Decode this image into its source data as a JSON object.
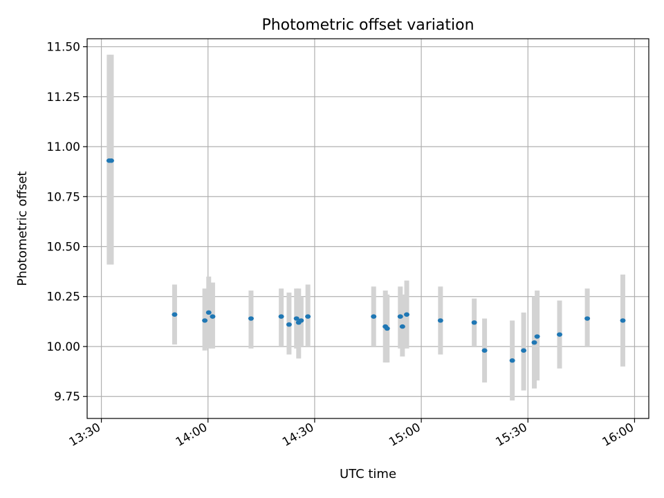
{
  "chart_data": {
    "type": "scatter",
    "title": "Photometric offset variation",
    "xlabel": "UTC time",
    "ylabel": "Photometric offset",
    "xlim": [
      "13:26",
      "16:04"
    ],
    "ylim": [
      9.64,
      11.54
    ],
    "x_ticks": [
      "13:30",
      "14:00",
      "14:30",
      "15:00",
      "15:30",
      "16:00"
    ],
    "y_ticks": [
      "9.75",
      "10.00",
      "10.25",
      "10.50",
      "10.75",
      "11.00",
      "11.25",
      "11.50"
    ],
    "grid": true,
    "colors": {
      "point": "#1f77b4",
      "error_bar": "#d3d3d3",
      "grid": "#b0b0b0"
    },
    "series": [
      {
        "points": [
          {
            "x": "13:32:12",
            "y": 10.93,
            "lo": 10.41,
            "hi": 11.46
          },
          {
            "x": "13:32:48",
            "y": 10.93,
            "lo": 10.41,
            "hi": 11.46
          },
          {
            "x": "13:50:36",
            "y": 10.16,
            "lo": 10.01,
            "hi": 10.31
          },
          {
            "x": "13:59:06",
            "y": 10.13,
            "lo": 9.98,
            "hi": 10.29
          },
          {
            "x": "14:00:12",
            "y": 10.17,
            "lo": 9.99,
            "hi": 10.35
          },
          {
            "x": "14:01:18",
            "y": 10.15,
            "lo": 9.99,
            "hi": 10.32
          },
          {
            "x": "14:12:06",
            "y": 10.14,
            "lo": 9.99,
            "hi": 10.28
          },
          {
            "x": "14:20:36",
            "y": 10.15,
            "lo": 10.0,
            "hi": 10.29
          },
          {
            "x": "14:22:48",
            "y": 10.11,
            "lo": 9.96,
            "hi": 10.27
          },
          {
            "x": "14:24:54",
            "y": 10.14,
            "lo": 9.99,
            "hi": 10.29
          },
          {
            "x": "14:25:30",
            "y": 10.12,
            "lo": 9.94,
            "hi": 10.29
          },
          {
            "x": "14:26:12",
            "y": 10.13,
            "lo": 10.0,
            "hi": 10.25
          },
          {
            "x": "14:28:06",
            "y": 10.15,
            "lo": 10.0,
            "hi": 10.31
          },
          {
            "x": "14:46:36",
            "y": 10.15,
            "lo": 10.0,
            "hi": 10.3
          },
          {
            "x": "14:49:54",
            "y": 10.1,
            "lo": 9.92,
            "hi": 10.28
          },
          {
            "x": "14:50:24",
            "y": 10.09,
            "lo": 9.92,
            "hi": 10.26
          },
          {
            "x": "14:54:06",
            "y": 10.15,
            "lo": 9.99,
            "hi": 10.3
          },
          {
            "x": "14:54:42",
            "y": 10.1,
            "lo": 9.95,
            "hi": 10.26
          },
          {
            "x": "14:55:54",
            "y": 10.16,
            "lo": 9.99,
            "hi": 10.33
          },
          {
            "x": "15:05:24",
            "y": 10.13,
            "lo": 9.96,
            "hi": 10.3
          },
          {
            "x": "15:14:54",
            "y": 10.12,
            "lo": 10.0,
            "hi": 10.24
          },
          {
            "x": "15:17:48",
            "y": 9.98,
            "lo": 9.82,
            "hi": 10.14
          },
          {
            "x": "15:25:36",
            "y": 9.93,
            "lo": 9.73,
            "hi": 10.13
          },
          {
            "x": "15:28:48",
            "y": 9.98,
            "lo": 9.78,
            "hi": 10.17
          },
          {
            "x": "15:31:48",
            "y": 10.02,
            "lo": 9.79,
            "hi": 10.25
          },
          {
            "x": "15:32:36",
            "y": 10.05,
            "lo": 9.83,
            "hi": 10.28
          },
          {
            "x": "15:38:54",
            "y": 10.06,
            "lo": 9.89,
            "hi": 10.23
          },
          {
            "x": "15:46:42",
            "y": 10.14,
            "lo": 10.0,
            "hi": 10.29
          },
          {
            "x": "15:56:42",
            "y": 10.13,
            "lo": 9.9,
            "hi": 10.36
          }
        ]
      }
    ]
  }
}
